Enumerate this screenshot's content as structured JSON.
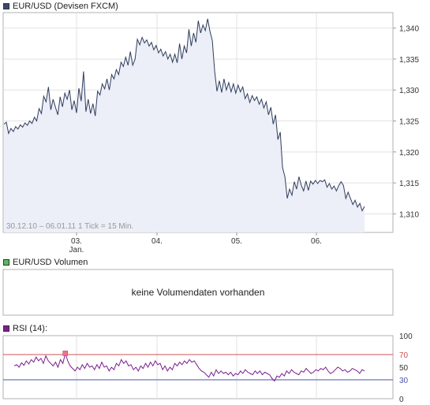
{
  "legends": {
    "price": "EUR/USD (Devisen FXCM)",
    "volume": "EUR/USD Volumen",
    "rsi": "RSI (14):"
  },
  "colors": {
    "price_line": "#2f3d5c",
    "price_fill": "#eceef8",
    "rsi_line": "#7b1f8c",
    "rsi_upper_line": "#d05050",
    "rsi_lower_line": "#4a55a8",
    "volume_swatch": "#5cb85c",
    "price_swatch": "#3b4a6b",
    "rsi_swatch": "#7b1f8c",
    "rsi_peak_marker": "#f07090"
  },
  "volume_panel": {
    "message": "keine Volumendaten vorhanden"
  },
  "chart_data": [
    {
      "type": "area",
      "title": "EUR/USD (Devisen FXCM)",
      "footer_note": "30.12.10 – 06.01.11   1 Tick = 15 Min.",
      "x_tick_labels": [
        "03.",
        "04.",
        "05.",
        "06."
      ],
      "x_sublabel": "Jan.",
      "y_tick_labels": [
        "1,340",
        "1,335",
        "1,330",
        "1,325",
        "1,320",
        "1,315",
        "1,310"
      ],
      "ylim": [
        1.307,
        1.3425
      ],
      "grid": true,
      "series": [
        {
          "values": [
            1.3245,
            1.3248,
            1.323,
            1.3238,
            1.3233,
            1.3241,
            1.3237,
            1.3244,
            1.324,
            1.3247,
            1.3243,
            1.325,
            1.3246,
            1.3256,
            1.325,
            1.327,
            1.3262,
            1.329,
            1.3281,
            1.3305,
            1.3268,
            1.3285,
            1.3272,
            1.326,
            1.3289,
            1.3273,
            1.3295,
            1.3285,
            1.33,
            1.3268,
            1.3283,
            1.3263,
            1.3303,
            1.3282,
            1.333,
            1.3265,
            1.3285,
            1.3262,
            1.3278,
            1.3258,
            1.3298,
            1.3292,
            1.331,
            1.3302,
            1.3318,
            1.33,
            1.3325,
            1.3318,
            1.3333,
            1.3325,
            1.3345,
            1.3338,
            1.3353,
            1.334,
            1.3362,
            1.334,
            1.335,
            1.3382,
            1.3373,
            1.3385,
            1.3376,
            1.3381,
            1.3371,
            1.3377,
            1.3365,
            1.3372,
            1.336,
            1.3366,
            1.3355,
            1.3362,
            1.335,
            1.3358,
            1.3345,
            1.3358,
            1.3344,
            1.3375,
            1.335,
            1.3371,
            1.336,
            1.3398,
            1.3371,
            1.3392,
            1.3377,
            1.3412,
            1.3392,
            1.3405,
            1.3396,
            1.3415,
            1.3395,
            1.338,
            1.333,
            1.3298,
            1.3315,
            1.3296,
            1.3318,
            1.33,
            1.3312,
            1.3297,
            1.331,
            1.3295,
            1.3308,
            1.3297,
            1.3305,
            1.3286,
            1.3294,
            1.328,
            1.3291,
            1.3283,
            1.3289,
            1.3277,
            1.3285,
            1.3271,
            1.3281,
            1.326,
            1.3272,
            1.3245,
            1.326,
            1.322,
            1.3232,
            1.3175,
            1.316,
            1.3125,
            1.314,
            1.313,
            1.3152,
            1.314,
            1.316,
            1.3146,
            1.3137,
            1.3153,
            1.3138,
            1.3153,
            1.3148,
            1.3154,
            1.3149,
            1.3154,
            1.3152,
            1.3155,
            1.3143,
            1.3149,
            1.314,
            1.3145,
            1.3137,
            1.3146,
            1.3152,
            1.3146,
            1.3125,
            1.3135,
            1.3125,
            1.3115,
            1.3122,
            1.3111,
            1.3117,
            1.3105,
            1.3112
          ]
        }
      ]
    },
    {
      "type": "line",
      "title": "RSI (14):",
      "y_tick_labels": [
        "100",
        "70",
        "50",
        "30",
        "0"
      ],
      "ylim": [
        0,
        100
      ],
      "reference_lines": [
        70,
        30
      ],
      "grid": true,
      "series": [
        {
          "values": [
            52,
            54,
            50,
            57,
            53,
            60,
            55,
            62,
            58,
            66,
            60,
            64,
            56,
            68,
            60,
            56,
            52,
            58,
            50,
            62,
            56,
            72,
            60,
            52,
            48,
            44,
            50,
            46,
            54,
            48,
            56,
            50,
            52,
            46,
            54,
            48,
            58,
            50,
            52,
            44,
            50,
            46,
            56,
            52,
            62,
            56,
            60,
            52,
            54,
            46,
            50,
            44,
            52,
            48,
            56,
            50,
            58,
            52,
            60,
            54,
            56,
            46,
            52,
            44,
            50,
            46,
            56,
            52,
            58,
            54,
            60,
            56,
            62,
            58,
            60,
            54,
            48,
            44,
            42,
            38,
            34,
            42,
            36,
            46,
            40,
            44,
            40,
            42,
            38,
            42,
            36,
            40,
            38,
            44,
            40,
            46,
            42,
            40,
            38,
            44,
            40,
            44,
            38,
            42,
            40,
            38,
            32,
            28,
            36,
            34,
            40,
            36,
            44,
            40,
            46,
            42,
            40,
            38,
            44,
            42,
            48,
            44,
            40,
            42,
            46,
            44,
            48,
            46,
            50,
            44,
            40,
            42,
            46,
            50,
            48,
            44,
            46,
            42,
            44,
            48,
            46,
            44,
            40,
            46,
            44
          ]
        }
      ]
    }
  ]
}
